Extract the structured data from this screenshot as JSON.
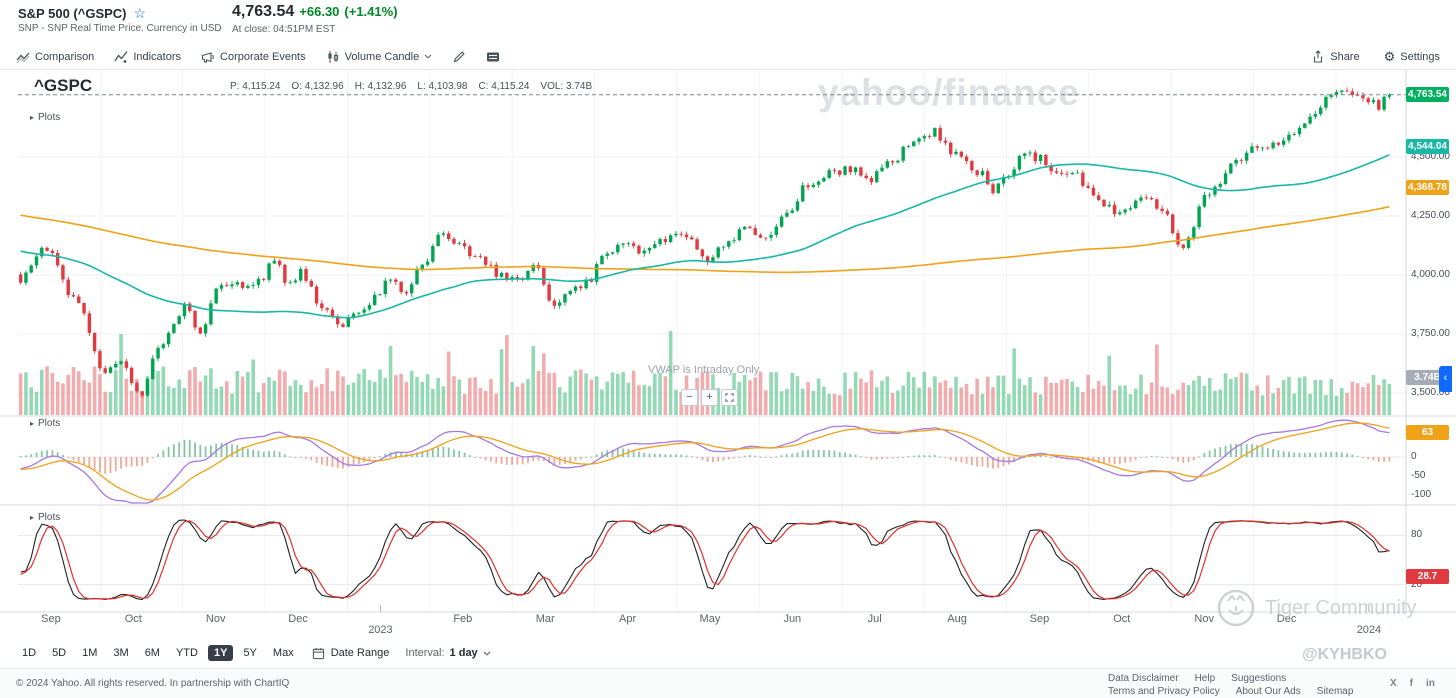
{
  "header": {
    "symbol_title": "S&P 500 (^GSPC)",
    "subtitle": "SNP - SNP Real Time Price. Currency in USD",
    "price": "4,763.54",
    "change": "+66.30",
    "change_pct": "(+1.41%)",
    "at_close": "At close: 04:51PM EST"
  },
  "toolbar": {
    "comparison": "Comparison",
    "indicators": "Indicators",
    "corporate_events": "Corporate Events",
    "chart_style": "Volume Candle",
    "share": "Share",
    "settings": "Settings"
  },
  "chart": {
    "symbol_label": "^GSPC",
    "plots_label": "Plots",
    "vwap_note": "VWAP is Intraday Only",
    "readout": [
      {
        "label": "P:",
        "value": "4,115.24"
      },
      {
        "label": "O:",
        "value": "4,132.96"
      },
      {
        "label": "H:",
        "value": "4,132.96"
      },
      {
        "label": "L:",
        "value": "4,103.98"
      },
      {
        "label": "C:",
        "value": "4,115.24"
      },
      {
        "label": "VOL:",
        "value": "3.74B"
      }
    ],
    "zoom": {
      "out": "−",
      "in": "+"
    }
  },
  "chart_data": {
    "type": "candlestick",
    "symbol": "^GSPC",
    "x_labels": [
      "Sep",
      "Oct",
      "Nov",
      "Dec",
      "2023",
      "Feb",
      "Mar",
      "Apr",
      "May",
      "Jun",
      "Jul",
      "Aug",
      "Sep",
      "Oct",
      "Nov",
      "Dec",
      "2024"
    ],
    "year_label_indices": [
      4,
      16
    ],
    "y_axis": {
      "ticks": [
        {
          "label": "4,500.00",
          "value": 4500
        },
        {
          "label": "4,250.00",
          "value": 4250
        },
        {
          "label": "4,000.00",
          "value": 4000
        },
        {
          "label": "3,750.00",
          "value": 3750
        },
        {
          "label": "3,500.00",
          "value": 3500
        }
      ],
      "last_price": {
        "label": "4,763.54",
        "value": 4763.54,
        "color": "#00b061"
      },
      "ma50": {
        "label": "4,544.04",
        "value": 4544.04,
        "color": "#18b7a6"
      },
      "ma200": {
        "label": "4,368.78",
        "value": 4368.78,
        "color": "#f0a219"
      },
      "volume": {
        "label": "3.74B",
        "color": "#a6adb5"
      }
    },
    "num_candles": 260,
    "price_anchors": [
      [
        0,
        3985
      ],
      [
        0.018,
        4110
      ],
      [
        0.04,
        3900
      ],
      [
        0.061,
        3590
      ],
      [
        0.075,
        3620
      ],
      [
        0.087,
        3495
      ],
      [
        0.1,
        3680
      ],
      [
        0.122,
        3870
      ],
      [
        0.13,
        3740
      ],
      [
        0.145,
        3950
      ],
      [
        0.16,
        3955
      ],
      [
        0.175,
        3975
      ],
      [
        0.185,
        4075
      ],
      [
        0.195,
        3945
      ],
      [
        0.205,
        4015
      ],
      [
        0.22,
        3850
      ],
      [
        0.235,
        3790
      ],
      [
        0.25,
        3855
      ],
      [
        0.26,
        3920
      ],
      [
        0.27,
        3990
      ],
      [
        0.28,
        3930
      ],
      [
        0.295,
        4050
      ],
      [
        0.308,
        4170
      ],
      [
        0.32,
        4120
      ],
      [
        0.335,
        4080
      ],
      [
        0.35,
        4000
      ],
      [
        0.366,
        3982
      ],
      [
        0.375,
        4040
      ],
      [
        0.39,
        3870
      ],
      [
        0.4,
        3930
      ],
      [
        0.415,
        3970
      ],
      [
        0.427,
        4105
      ],
      [
        0.44,
        4125
      ],
      [
        0.455,
        4100
      ],
      [
        0.47,
        4150
      ],
      [
        0.488,
        4168
      ],
      [
        0.5,
        4070
      ],
      [
        0.515,
        4130
      ],
      [
        0.53,
        4195
      ],
      [
        0.54,
        4150
      ],
      [
        0.549,
        4180
      ],
      [
        0.56,
        4270
      ],
      [
        0.575,
        4380
      ],
      [
        0.59,
        4430
      ],
      [
        0.61,
        4450
      ],
      [
        0.62,
        4410
      ],
      [
        0.635,
        4470
      ],
      [
        0.655,
        4580
      ],
      [
        0.667,
        4605
      ],
      [
        0.671,
        4590
      ],
      [
        0.685,
        4500
      ],
      [
        0.7,
        4440
      ],
      [
        0.71,
        4350
      ],
      [
        0.72,
        4405
      ],
      [
        0.732,
        4510
      ],
      [
        0.745,
        4490
      ],
      [
        0.755,
        4450
      ],
      [
        0.77,
        4420
      ],
      [
        0.785,
        4330
      ],
      [
        0.793,
        4290
      ],
      [
        0.805,
        4260
      ],
      [
        0.82,
        4350
      ],
      [
        0.835,
        4280
      ],
      [
        0.848,
        4120
      ],
      [
        0.854,
        4170
      ],
      [
        0.865,
        4320
      ],
      [
        0.875,
        4380
      ],
      [
        0.89,
        4500
      ],
      [
        0.905,
        4540
      ],
      [
        0.915,
        4565
      ],
      [
        0.93,
        4600
      ],
      [
        0.945,
        4700
      ],
      [
        0.96,
        4755
      ],
      [
        0.976,
        4783
      ],
      [
        0.985,
        4745
      ],
      [
        0.992,
        4720
      ],
      [
        1,
        4763.54
      ]
    ],
    "prehistory_anchors": [
      [
        0,
        4780
      ],
      [
        0.15,
        4520
      ],
      [
        0.3,
        4350
      ],
      [
        0.45,
        3900
      ],
      [
        0.55,
        4160
      ],
      [
        0.7,
        4290
      ],
      [
        0.8,
        4210
      ],
      [
        0.9,
        4060
      ],
      [
        1,
        3995
      ]
    ],
    "indicators": {
      "panel2": {
        "ticks": [
          {
            "label": "0",
            "value": 0
          },
          {
            "label": "-50",
            "value": -50
          },
          {
            "label": "-100",
            "value": -100
          }
        ],
        "badge": {
          "label": "63",
          "value": 63,
          "color": "#f0a219"
        },
        "line1_color": "#a678e2",
        "line2_color": "#f0a219"
      },
      "panel3": {
        "ticks": [
          {
            "label": "80",
            "value": 80
          },
          {
            "label": "20",
            "value": 20
          }
        ],
        "badge": {
          "label": "28.7",
          "value": 28.7,
          "color": "#e0393f"
        },
        "line1_color": "#1d2228",
        "line2_color": "#e0302a"
      }
    },
    "colors": {
      "up": "#00a550",
      "down": "#e0393f",
      "vol_up": "rgba(0,165,80,0.42)",
      "vol_down": "rgba(224,57,63,0.42)",
      "grid": "#f0f2f5",
      "divider": "#d7dbe0",
      "dashed": "#7a838c"
    }
  },
  "range_bar": {
    "ranges": [
      "1D",
      "5D",
      "1M",
      "3M",
      "6M",
      "YTD",
      "1Y",
      "5Y",
      "Max"
    ],
    "selected": "1Y",
    "date_range": "Date Range",
    "interval_label": "Interval:",
    "interval_value": "1 day"
  },
  "watermarks": {
    "center": "yahoo/finance",
    "community": "Tiger Community",
    "user": "@KYHBKO"
  },
  "footer": {
    "copyright": "© 2024 Yahoo. All rights reserved. In partnership with ChartIQ",
    "links_row1": [
      "Data Disclaimer",
      "Help",
      "Suggestions"
    ],
    "links_row2": [
      "Terms and Privacy Policy",
      "About Our Ads",
      "Sitemap"
    ],
    "social": [
      "X",
      "f",
      "in"
    ]
  }
}
